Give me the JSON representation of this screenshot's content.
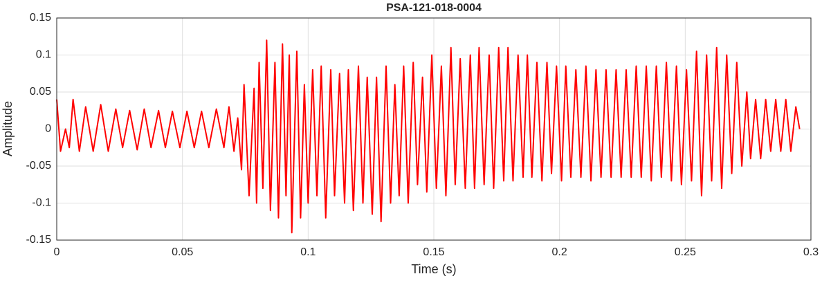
{
  "chart_data": {
    "type": "line",
    "title": "PSA-121-018-0004",
    "xlabel": "Time (s)",
    "ylabel": "Amplitude",
    "xlim": [
      0,
      0.3
    ],
    "xticks": [
      0,
      0.05,
      0.1,
      0.15,
      0.2,
      0.25,
      0.3
    ],
    "ylim": [
      -0.15,
      0.15
    ],
    "yticks": [
      -0.15,
      -0.1,
      -0.05,
      0,
      0.05,
      0.1,
      0.15
    ],
    "grid": true,
    "series": [
      {
        "color": "#ff0000",
        "x": [
          0,
          0.0015,
          0.0035,
          0.005,
          0.0065,
          0.009,
          0.0115,
          0.0145,
          0.0175,
          0.0205,
          0.0235,
          0.0262,
          0.029,
          0.032,
          0.0348,
          0.0375,
          0.0405,
          0.0432,
          0.046,
          0.049,
          0.0518,
          0.0547,
          0.0576,
          0.0605,
          0.0635,
          0.0665,
          0.0685,
          0.0705,
          0.072,
          0.0735,
          0.0745,
          0.0765,
          0.0785,
          0.0795,
          0.0805,
          0.082,
          0.0835,
          0.085,
          0.0868,
          0.0882,
          0.0898,
          0.0912,
          0.0925,
          0.0935,
          0.0955,
          0.097,
          0.0985,
          0.1,
          0.1018,
          0.1035,
          0.1052,
          0.107,
          0.109,
          0.1105,
          0.1125,
          0.1145,
          0.116,
          0.118,
          0.12,
          0.1218,
          0.1235,
          0.1255,
          0.1272,
          0.129,
          0.131,
          0.1328,
          0.1345,
          0.1362,
          0.138,
          0.1398,
          0.1418,
          0.1435,
          0.1455,
          0.1472,
          0.1492,
          0.151,
          0.153,
          0.1548,
          0.1568,
          0.1585,
          0.1605,
          0.1625,
          0.1645,
          0.1662,
          0.168,
          0.17,
          0.172,
          0.1738,
          0.1758,
          0.1778,
          0.1795,
          0.1815,
          0.1835,
          0.1855,
          0.1872,
          0.189,
          0.191,
          0.193,
          0.195,
          0.1968,
          0.1988,
          0.2008,
          0.2025,
          0.2045,
          0.2065,
          0.2085,
          0.2105,
          0.2125,
          0.2145,
          0.2165,
          0.2185,
          0.2205,
          0.2225,
          0.2245,
          0.2265,
          0.2285,
          0.2305,
          0.2325,
          0.2345,
          0.2365,
          0.2385,
          0.2405,
          0.2425,
          0.2445,
          0.2465,
          0.2485,
          0.2505,
          0.2525,
          0.2545,
          0.2565,
          0.2585,
          0.2605,
          0.2625,
          0.2645,
          0.2665,
          0.2685,
          0.2705,
          0.2725,
          0.2745,
          0.276,
          0.278,
          0.28,
          0.282,
          0.284,
          0.286,
          0.288,
          0.29,
          0.292,
          0.294,
          0.2955
        ],
        "values": [
          0.04,
          -0.03,
          0.0,
          -0.025,
          0.04,
          -0.03,
          0.03,
          -0.03,
          0.033,
          -0.03,
          0.027,
          -0.025,
          0.025,
          -0.028,
          0.027,
          -0.025,
          0.025,
          -0.025,
          0.024,
          -0.025,
          0.024,
          -0.025,
          0.024,
          -0.025,
          0.027,
          -0.025,
          0.03,
          -0.03,
          0.015,
          -0.055,
          0.06,
          -0.09,
          0.055,
          -0.1,
          0.09,
          -0.08,
          0.12,
          -0.11,
          0.09,
          -0.12,
          0.115,
          -0.09,
          0.1,
          -0.14,
          0.105,
          -0.12,
          0.06,
          -0.1,
          0.08,
          -0.09,
          0.085,
          -0.12,
          0.08,
          -0.09,
          0.075,
          -0.1,
          0.08,
          -0.11,
          0.085,
          -0.1,
          0.07,
          -0.115,
          0.07,
          -0.125,
          0.085,
          -0.1,
          0.06,
          -0.09,
          0.085,
          -0.1,
          0.09,
          -0.075,
          0.07,
          -0.085,
          0.1,
          -0.08,
          0.085,
          -0.09,
          0.11,
          -0.075,
          0.095,
          -0.08,
          0.1,
          -0.08,
          0.11,
          -0.075,
          0.1,
          -0.08,
          0.11,
          -0.07,
          0.11,
          -0.07,
          0.1,
          -0.065,
          0.1,
          -0.065,
          0.09,
          -0.07,
          0.09,
          -0.06,
          0.085,
          -0.07,
          0.085,
          -0.065,
          0.08,
          -0.065,
          0.085,
          -0.07,
          0.08,
          -0.065,
          0.08,
          -0.065,
          0.08,
          -0.065,
          0.08,
          -0.065,
          0.085,
          -0.065,
          0.085,
          -0.07,
          0.085,
          -0.065,
          0.09,
          -0.07,
          0.085,
          -0.075,
          0.08,
          -0.07,
          0.105,
          -0.09,
          0.1,
          -0.07,
          0.11,
          -0.08,
          0.1,
          -0.06,
          0.09,
          -0.05,
          0.05,
          -0.04,
          0.04,
          -0.04,
          0.04,
          -0.03,
          0.04,
          -0.03,
          0.04,
          -0.03,
          0.03,
          0.0
        ]
      }
    ]
  }
}
